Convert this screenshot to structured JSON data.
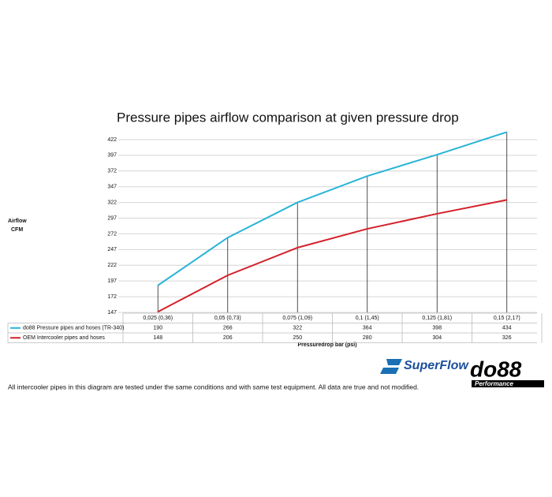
{
  "chart_data": {
    "type": "line",
    "title": "Pressure pipes airflow comparison at given pressure drop",
    "ylabel": [
      "Airflow",
      "CFM"
    ],
    "xlabel": "Pressuredrop bar (psi)",
    "categories": [
      "0,025 (0,36)",
      "0,05 (0,73)",
      "0,075 (1,09)",
      "0,1 (1,45)",
      "0,125 (1,81)",
      "0,15 (2,17)"
    ],
    "series": [
      {
        "name": "do88 Pressure pipes and hoses (TR-340)",
        "color": "#29b4d8",
        "values": [
          190,
          266,
          322,
          364,
          398,
          434
        ]
      },
      {
        "name": "OEM Intercooler pipes and hoses",
        "color": "#d4202a",
        "values": [
          148,
          206,
          250,
          280,
          304,
          326
        ]
      }
    ],
    "ylim": [
      147,
      437
    ],
    "yticks": [
      147,
      172,
      197,
      222,
      247,
      272,
      297,
      322,
      347,
      372,
      397,
      422
    ],
    "grid": true
  },
  "footnote": "All intercooler pipes in this diagram are tested under the same conditions and with same test equipment. All data are true and not modified.",
  "logos": [
    "SuperFlow",
    "do88",
    "Performance"
  ]
}
